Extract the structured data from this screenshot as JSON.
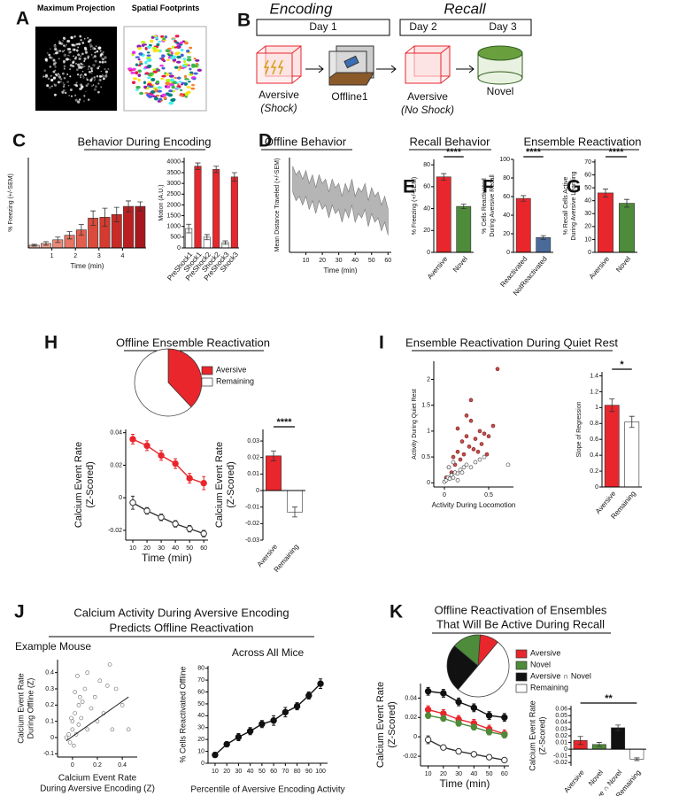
{
  "panel_letters": [
    "A",
    "B",
    "C",
    "D",
    "E",
    "F",
    "G",
    "H",
    "I",
    "J",
    "K"
  ],
  "panel_a": {
    "left": "Maximum Projection",
    "right": "Spatial Footprints"
  },
  "panel_b": {
    "encoding": "Encoding",
    "recall": "Recall",
    "day1": "Day 1",
    "day2": "Day 2",
    "day3": "Day 3",
    "aversive_shock": [
      "Aversive",
      "(Shock)"
    ],
    "offline": "Offline1",
    "aversive_recall": [
      "Aversive",
      "(No Shock)"
    ],
    "novel": "Novel"
  },
  "headings": {
    "c": "Behavior During Encoding",
    "d": "Offline Behavior",
    "recall": "Recall Behavior",
    "ensemble": "Ensemble Reactivation",
    "h": "Offline Ensemble Reactivation",
    "i": "Ensemble Reactivation During Quiet Rest",
    "j": [
      "Calcium Activity During Aversive Encoding",
      "Predicts Offline Reactivation"
    ],
    "k": [
      "Offline Reactivation of Ensembles",
      "That Will Be Active During Recall"
    ]
  },
  "chart_data": [
    {
      "type": "bar",
      "ylabel": "% Freezing (+/-SEM)",
      "xlabel": "Time (min)",
      "x": [
        0.25,
        0.75,
        1.25,
        1.75,
        2.25,
        2.75,
        3.25,
        3.75,
        4.25,
        4.75
      ],
      "values": [
        3,
        5,
        9,
        14,
        20,
        33,
        34,
        37,
        46,
        46
      ],
      "errors": [
        1,
        2,
        3,
        4,
        6,
        8,
        10,
        8,
        6,
        5
      ],
      "colors": [
        "#f2b8a8",
        "#efa08f",
        "#ec8a78",
        "#e87463",
        "#e35e4e",
        "#dc4a3c",
        "#d53a2f",
        "#c92a26",
        "#bb1f22",
        "#a8161e"
      ],
      "xlim": [
        0,
        5
      ],
      "xticks": [
        1,
        2,
        3,
        4
      ],
      "ylim": [
        0,
        100
      ]
    },
    {
      "type": "bar",
      "ylabel": "Motion (A.U.)",
      "categories": [
        "PreShock1",
        "Shock1",
        "PreShock2",
        "Shock2",
        "PreShock3",
        "Shock3"
      ],
      "values": [
        900,
        3800,
        500,
        3650,
        250,
        3300
      ],
      "errors": [
        200,
        150,
        120,
        150,
        80,
        200
      ],
      "colors": [
        "#ffffff",
        "#e8262c",
        "#ffffff",
        "#e8262c",
        "#ffffff",
        "#e8262c"
      ],
      "ylim": [
        0,
        4200
      ],
      "yticks": [
        0,
        500,
        1000,
        1500,
        2000,
        2500,
        3000,
        3500,
        4000
      ]
    },
    {
      "type": "area",
      "ylabel": "Mean Distance Traveled (+/-SEM)",
      "xlabel": "Time (min)",
      "x": [
        2,
        4,
        6,
        8,
        10,
        12,
        14,
        16,
        18,
        20,
        22,
        24,
        26,
        28,
        30,
        32,
        34,
        36,
        38,
        40,
        42,
        44,
        46,
        48,
        50,
        52,
        54,
        56,
        58,
        60
      ],
      "upper": [
        3.0,
        2.8,
        2.9,
        2.7,
        2.9,
        2.6,
        2.8,
        2.5,
        2.8,
        2.6,
        2.7,
        2.4,
        2.7,
        2.5,
        2.6,
        2.3,
        2.6,
        2.4,
        2.7,
        2.3,
        2.5,
        2.4,
        2.6,
        2.2,
        2.5,
        2.3,
        2.4,
        2.1,
        2.3,
        2.0
      ],
      "lower": [
        2.4,
        2.2,
        2.3,
        2.1,
        2.3,
        2.0,
        2.2,
        1.9,
        2.2,
        2.0,
        2.1,
        1.8,
        2.1,
        1.9,
        2.0,
        1.7,
        2.0,
        1.8,
        2.1,
        1.7,
        1.9,
        1.8,
        2.0,
        1.6,
        1.9,
        1.7,
        1.8,
        1.5,
        1.7,
        1.4
      ],
      "color": "#b5b5b5",
      "xlim": [
        0,
        62
      ],
      "xticks": [
        10,
        20,
        30,
        40,
        50,
        60
      ],
      "ylim": [
        1,
        3.2
      ]
    },
    {
      "type": "bar",
      "ylabel": "% Freezing (+/-SEM)",
      "categories": [
        "Aversive",
        "Novel"
      ],
      "values": [
        69,
        42
      ],
      "errors": [
        3,
        2
      ],
      "colors": [
        "#e8262c",
        "#4e8b3a"
      ],
      "ylim": [
        0,
        85
      ],
      "yticks": [
        0,
        20,
        40,
        60,
        80
      ],
      "annotation": "****"
    },
    {
      "type": "bar",
      "ylabel": [
        "% Cells Reactivated",
        "During Aversive Recall"
      ],
      "categories": [
        "Reactivated",
        "NotReactivated"
      ],
      "values": [
        58,
        16
      ],
      "errors": [
        3,
        2
      ],
      "colors": [
        "#e8262c",
        "#4a6a9a"
      ],
      "ylim": [
        0,
        100
      ],
      "yticks": [
        0,
        20,
        40,
        60,
        80,
        100
      ],
      "annotation": "****"
    },
    {
      "type": "bar",
      "ylabel": [
        "% Recall Cells Active",
        "During Aversive Learning"
      ],
      "categories": [
        "Aversive",
        "Novel"
      ],
      "values": [
        46,
        38
      ],
      "errors": [
        3,
        3
      ],
      "colors": [
        "#e8262c",
        "#4e8b3a"
      ],
      "ylim": [
        0,
        72
      ],
      "yticks": [
        0,
        10,
        20,
        30,
        40,
        50,
        60,
        70
      ],
      "annotation": "****"
    },
    {
      "type": "pie",
      "categories": [
        "Aversive",
        "Remaining"
      ],
      "values": [
        38,
        62
      ],
      "colors": [
        "#e8262c",
        "#ffffff"
      ]
    },
    {
      "type": "line",
      "ylabel": [
        "Calcium Event Rate",
        "(Z-Scored)"
      ],
      "xlabel": "Time (min)",
      "x": [
        10,
        20,
        30,
        40,
        50,
        60
      ],
      "series": [
        {
          "color": "#e8262c",
          "marker_fill": "#e8262c",
          "values": [
            0.036,
            0.032,
            0.026,
            0.021,
            0.012,
            0.009
          ],
          "errors": [
            0.003,
            0.003,
            0.003,
            0.003,
            0.003,
            0.004
          ]
        },
        {
          "color": "#333333",
          "marker_fill": "#ffffff",
          "values": [
            -0.003,
            -0.008,
            -0.012,
            -0.016,
            -0.019,
            -0.022
          ],
          "errors": [
            0.004,
            0.002,
            0.002,
            0.002,
            0.002,
            0.002
          ]
        }
      ],
      "xlim": [
        5,
        63
      ],
      "xticks": [
        10,
        20,
        30,
        40,
        50,
        60
      ],
      "ylim": [
        -0.026,
        0.042
      ],
      "yticks": [
        -0.02,
        0,
        0.02,
        0.04
      ]
    },
    {
      "type": "bar",
      "ylabel": [
        "Calcium Event Rate",
        "(Z-Scored)"
      ],
      "categories": [
        "Aversive",
        "Remaining"
      ],
      "values": [
        0.021,
        -0.013
      ],
      "errors": [
        0.003,
        0.003
      ],
      "colors": [
        "#e8262c",
        "#ffffff"
      ],
      "ylim": [
        -0.03,
        0.037
      ],
      "yticks": [
        -0.03,
        -0.02,
        -0.01,
        0,
        0.01,
        0.02,
        0.03
      ],
      "annotation": "****"
    },
    {
      "type": "scatter",
      "ylabel": "Activity During Quiet Rest",
      "xlabel": "Activity During Locomotion",
      "series": [
        {
          "color": "#7a1a1a",
          "fill": "#c0504d",
          "x": [
            0.02,
            0.05,
            0.08,
            0.1,
            0.12,
            0.15,
            0.18,
            0.2,
            0.22,
            0.25,
            0.28,
            0.3,
            0.33,
            0.35,
            0.4,
            0.42,
            0.45,
            0.5,
            0.55,
            0.6,
            0.3,
            0.15,
            0.25,
            0.38,
            0.48
          ],
          "y": [
            0.1,
            0.3,
            0.2,
            0.5,
            0.35,
            0.6,
            0.45,
            0.8,
            0.55,
            0.9,
            0.7,
            1.2,
            0.65,
            0.85,
            1.0,
            0.75,
            0.95,
            0.9,
            1.1,
            2.2,
            1.6,
            1.05,
            1.3,
            0.6,
            0.55
          ]
        },
        {
          "color": "#333333",
          "fill": "#ffffff",
          "x": [
            0,
            0.02,
            0.04,
            0.06,
            0.08,
            0.1,
            0.12,
            0.15,
            0.18,
            0.2,
            0.22,
            0.25,
            0.3,
            0.35,
            0.4,
            0.45,
            0.05,
            0.1,
            0.15,
            0.72
          ],
          "y": [
            0.02,
            0.05,
            0.1,
            0.08,
            0.15,
            0.1,
            0.2,
            0.18,
            0.25,
            0.2,
            0.3,
            0.35,
            0.3,
            0.4,
            0.45,
            0.5,
            0.3,
            0.4,
            0.05,
            0.35
          ]
        }
      ],
      "xlim": [
        -0.12,
        0.78
      ],
      "xticks": [
        0,
        0.5
      ],
      "ylim": [
        -0.08,
        2.35
      ],
      "yticks": [
        0,
        0.5,
        1,
        1.5,
        2
      ]
    },
    {
      "type": "bar",
      "ylabel": "Slope of Regression",
      "categories": [
        "Aversive",
        "Remaining"
      ],
      "values": [
        1.03,
        0.82
      ],
      "errors": [
        0.08,
        0.07
      ],
      "colors": [
        "#e8262c",
        "#ffffff"
      ],
      "ylim": [
        0,
        1.45
      ],
      "yticks": [
        0,
        0.2,
        0.4,
        0.6,
        0.8,
        1,
        1.2,
        1.4
      ],
      "annotation": "*"
    },
    {
      "type": "scatter",
      "title": "Example Mouse",
      "ylabel": [
        "Calcium Event Rate",
        "During Offline (Z)"
      ],
      "xlabel": [
        "Calcium Event Rate",
        "During Aversive Encoding (Z)"
      ],
      "series": [
        {
          "color": "#666666",
          "fill": "#ffffff",
          "x": [
            -0.05,
            -0.03,
            -0.02,
            0,
            0,
            0.01,
            0.02,
            0.03,
            0.05,
            0.05,
            0.07,
            0.1,
            0.12,
            0.15,
            0.18,
            0.2,
            0.22,
            0.25,
            0.3,
            0.35,
            0.4,
            0.02,
            0.04,
            0.08,
            0.28,
            0.32,
            0.12,
            0.06,
            -0.01,
            0.45
          ],
          "y": [
            0,
            0.02,
            -0.03,
            0.05,
            0.1,
            -0.05,
            0.15,
            0.02,
            0.2,
            0.08,
            0.12,
            0.3,
            0.05,
            0.18,
            0.25,
            0.1,
            0.35,
            0.15,
            0.45,
            0.3,
            0.2,
            0.28,
            0.38,
            0.22,
            0.32,
            0.05,
            0.4,
            0.25,
            0.12,
            0.05
          ]
        }
      ],
      "fit_x": [
        -0.05,
        0.45
      ],
      "fit_y": [
        -0.02,
        0.25
      ],
      "xlim": [
        -0.12,
        0.52
      ],
      "xticks": [
        0,
        0.2,
        0.4
      ],
      "ylim": [
        -0.12,
        0.48
      ],
      "yticks": [
        -0.1,
        0,
        0.1,
        0.2,
        0.3,
        0.4
      ]
    },
    {
      "type": "line",
      "title": "Across All Mice",
      "ylabel": "% Cells Reactivated Offline",
      "xlabel": "Percentile of Aversive Encoding Activity",
      "x": [
        10,
        20,
        30,
        40,
        50,
        60,
        70,
        80,
        90,
        100
      ],
      "series": [
        {
          "color": "#111111",
          "marker_fill": "#111111",
          "values": [
            7,
            16,
            22,
            27,
            33,
            36,
            43,
            48,
            57,
            67
          ],
          "errors": [
            2,
            2,
            3,
            3,
            3,
            4,
            4,
            3,
            3,
            4
          ]
        }
      ],
      "xlim": [
        4,
        106
      ],
      "xticks": [
        10,
        20,
        30,
        40,
        50,
        60,
        70,
        80,
        90,
        100
      ],
      "ylim": [
        0,
        82
      ],
      "yticks": [
        0,
        10,
        20,
        30,
        40,
        50,
        60,
        70,
        80
      ]
    },
    {
      "type": "pie",
      "categories": [
        "Aversive",
        "Novel",
        "Aversive ∩ Novel",
        "Remaining"
      ],
      "values": [
        10,
        15,
        25,
        50
      ],
      "colors": [
        "#e8262c",
        "#4e8b3a",
        "#111111",
        "#ffffff"
      ]
    },
    {
      "type": "line",
      "ylabel": [
        "Calcium Event Rate",
        "(Z-Scored)"
      ],
      "xlabel": "Time (min)",
      "x": [
        10,
        20,
        30,
        40,
        50,
        60
      ],
      "series": [
        {
          "color": "#111111",
          "marker_fill": "#111111",
          "values": [
            0.047,
            0.045,
            0.036,
            0.03,
            0.022,
            0.02
          ],
          "errors": [
            0.004,
            0.004,
            0.004,
            0.004,
            0.004,
            0.004
          ]
        },
        {
          "color": "#e8262c",
          "marker_fill": "#e8262c",
          "values": [
            0.028,
            0.024,
            0.018,
            0.014,
            0.008,
            0.003
          ],
          "errors": [
            0.004,
            0.004,
            0.004,
            0.004,
            0.004,
            0.004
          ]
        },
        {
          "color": "#4e8b3a",
          "marker_fill": "#4e8b3a",
          "values": [
            0.022,
            0.019,
            0.014,
            0.01,
            0.005,
            0.002
          ],
          "errors": [
            0.003,
            0.003,
            0.003,
            0.003,
            0.003,
            0.003
          ]
        },
        {
          "color": "#333333",
          "marker_fill": "#ffffff",
          "values": [
            -0.003,
            -0.011,
            -0.015,
            -0.018,
            -0.021,
            -0.024
          ],
          "errors": [
            0.004,
            0.002,
            0.002,
            0.002,
            0.002,
            0.002
          ]
        }
      ],
      "xlim": [
        5,
        63
      ],
      "xticks": [
        10,
        20,
        30,
        40,
        50,
        60
      ],
      "ylim": [
        -0.03,
        0.055
      ],
      "yticks": [
        -0.02,
        0,
        0.02,
        0.04
      ]
    },
    {
      "type": "bar",
      "ylabel": [
        "Calcium Event Rate",
        "(Z-Scored)"
      ],
      "categories": [
        "Aversive",
        "Novel",
        "Aversive ∩ Novel",
        "Remaining"
      ],
      "values": [
        0.013,
        0.007,
        0.032,
        -0.015
      ],
      "errors": [
        0.006,
        0.003,
        0.004,
        0.002
      ],
      "colors": [
        "#e8262c",
        "#4e8b3a",
        "#111111",
        "#ffffff"
      ],
      "ylim": [
        -0.025,
        0.065
      ],
      "yticks": [
        -0.02,
        -0.01,
        0,
        0.01,
        0.02,
        0.03,
        0.04,
        0.05,
        0.06
      ],
      "annotation": "**"
    }
  ]
}
